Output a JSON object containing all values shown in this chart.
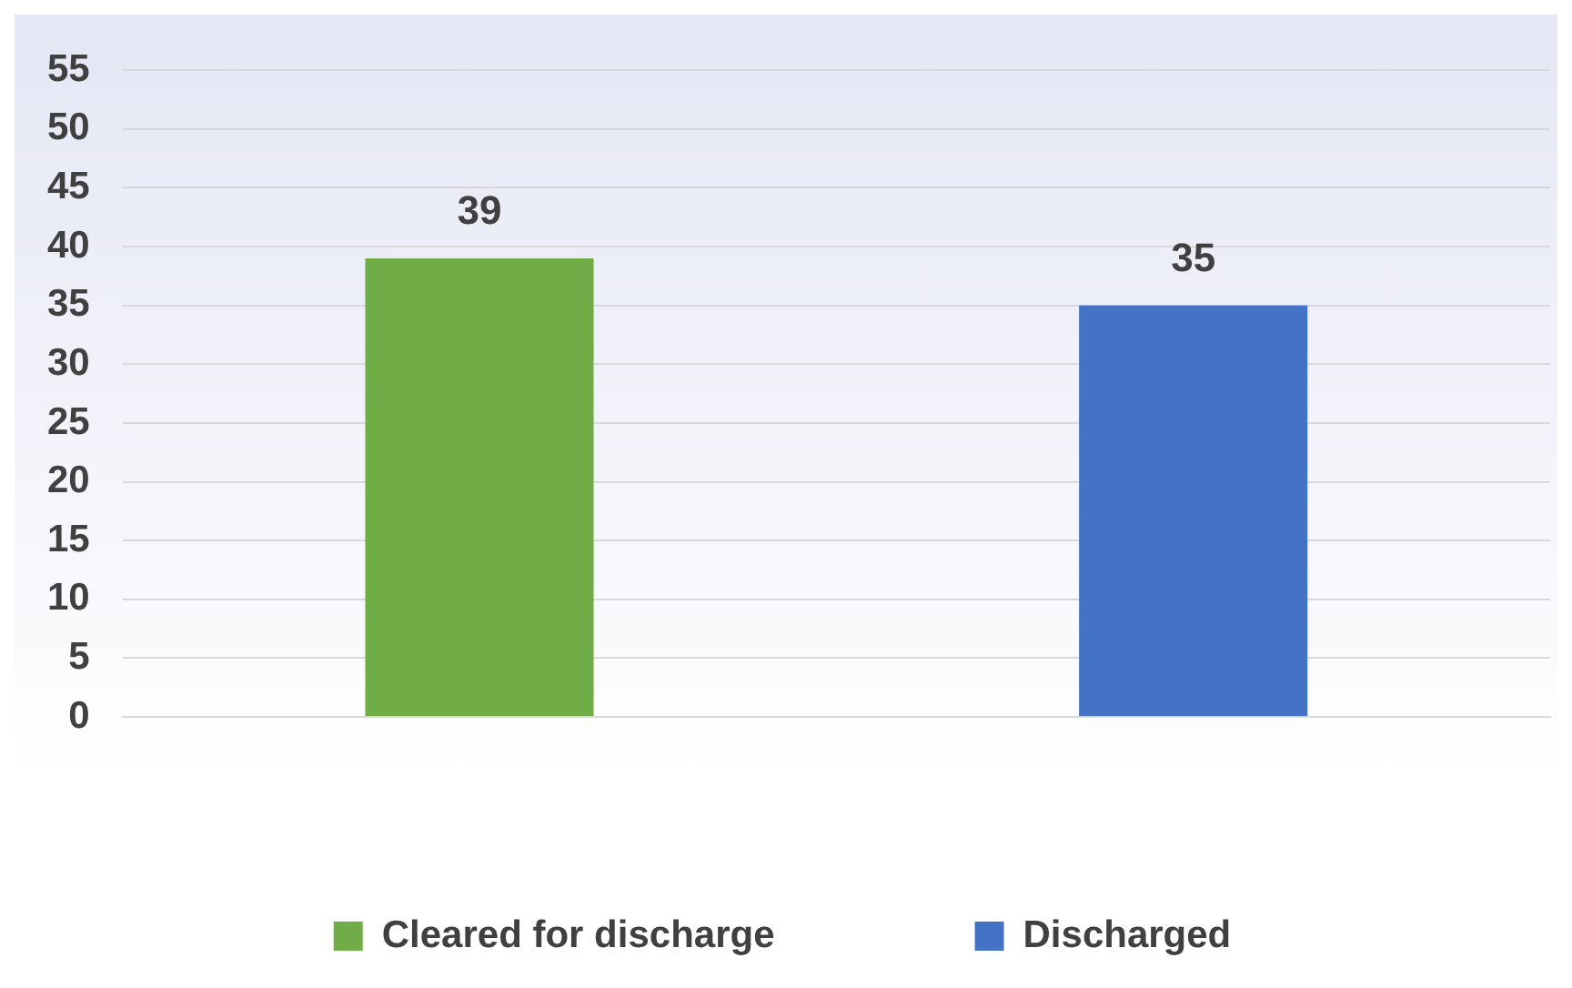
{
  "chart_data": {
    "type": "bar",
    "categories": [
      null,
      null
    ],
    "series": [
      {
        "name": "Cleared for discharge",
        "color": "#70ad47",
        "values": [
          39,
          null
        ]
      },
      {
        "name": "Discharged",
        "color": "#4472c4",
        "values": [
          null,
          35
        ]
      }
    ],
    "ylim": [
      0,
      55
    ],
    "yticks": [
      0,
      5,
      10,
      15,
      20,
      25,
      30,
      35,
      40,
      45,
      50,
      55
    ],
    "grid": "y",
    "data_labels": true,
    "legend": "bottom"
  }
}
